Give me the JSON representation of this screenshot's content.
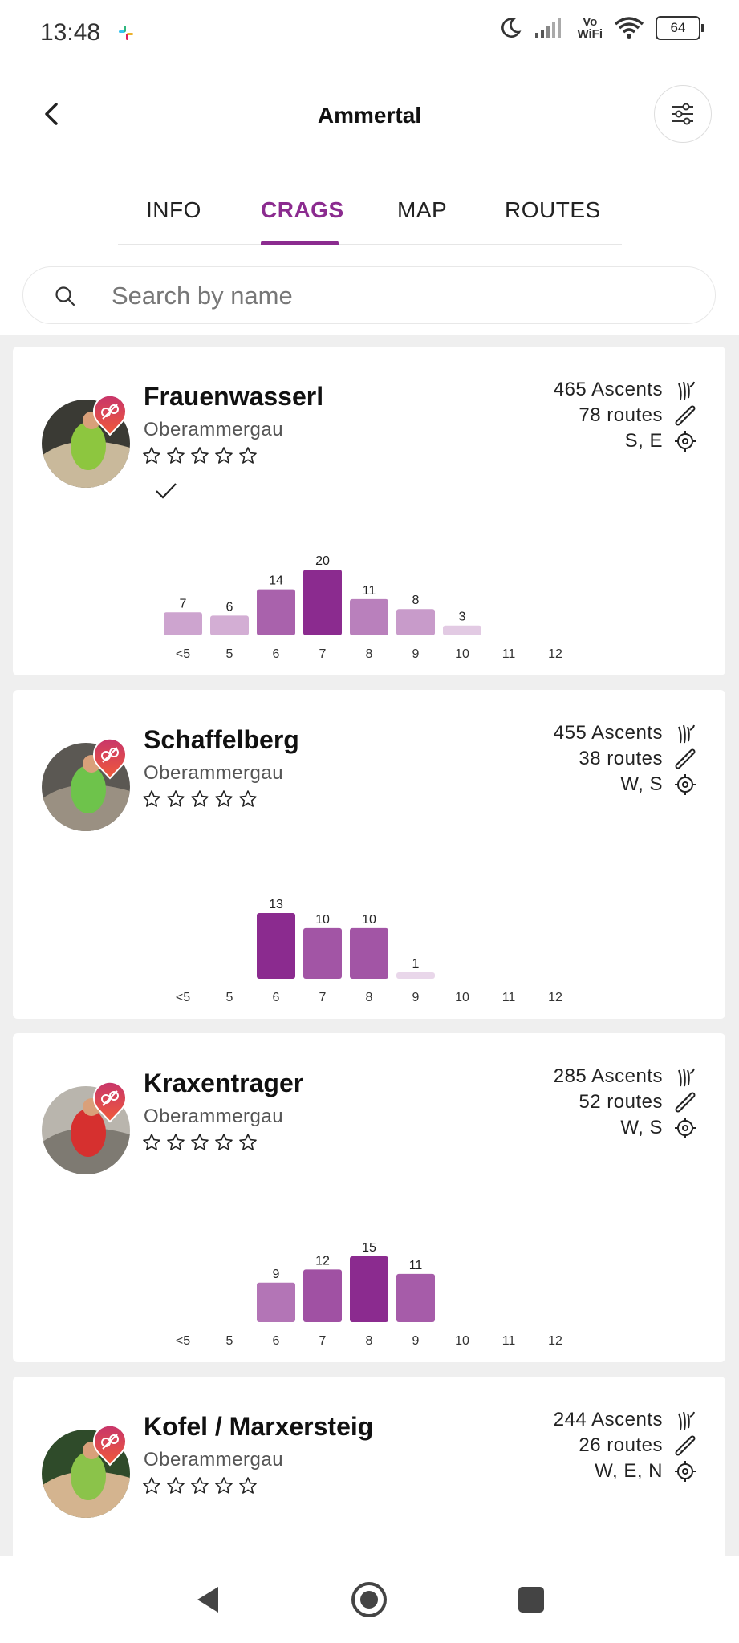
{
  "status": {
    "time": "13:48",
    "battery": "64",
    "vowifi_top": "Vo",
    "vowifi_bottom": "WiFi"
  },
  "header": {
    "title": "Ammertal"
  },
  "tabs": [
    {
      "label": "INFO",
      "active": false
    },
    {
      "label": "CRAGS",
      "active": true
    },
    {
      "label": "MAP",
      "active": false
    },
    {
      "label": "ROUTES",
      "active": false
    }
  ],
  "search": {
    "placeholder": "Search by name",
    "value": ""
  },
  "grade_labels": [
    "<5",
    "5",
    "6",
    "7",
    "8",
    "9",
    "10",
    "11",
    "12"
  ],
  "colors": {
    "accent": "#8b2b8f"
  },
  "crags": [
    {
      "name": "Frauenwasserl",
      "location": "Oberammergau",
      "ascents": "465 Ascents",
      "routes": "78 routes",
      "aspect": "S, E",
      "visited": true,
      "rating": 0,
      "chart_data": {
        "type": "bar",
        "categories": [
          "<5",
          "5",
          "6",
          "7",
          "8",
          "9",
          "10",
          "11",
          "12"
        ],
        "values": [
          7,
          6,
          14,
          20,
          11,
          8,
          3,
          0,
          0
        ]
      }
    },
    {
      "name": "Schaffelberg",
      "location": "Oberammergau",
      "ascents": "455 Ascents",
      "routes": "38 routes",
      "aspect": "W, S",
      "visited": false,
      "rating": 0,
      "chart_data": {
        "type": "bar",
        "categories": [
          "<5",
          "5",
          "6",
          "7",
          "8",
          "9",
          "10",
          "11",
          "12"
        ],
        "values": [
          0,
          0,
          13,
          10,
          10,
          1,
          0,
          0,
          0
        ]
      }
    },
    {
      "name": "Kraxentrager",
      "location": "Oberammergau",
      "ascents": "285 Ascents",
      "routes": "52 routes",
      "aspect": "W, S",
      "visited": false,
      "rating": 0,
      "chart_data": {
        "type": "bar",
        "categories": [
          "<5",
          "5",
          "6",
          "7",
          "8",
          "9",
          "10",
          "11",
          "12"
        ],
        "values": [
          0,
          0,
          9,
          12,
          15,
          11,
          0,
          0,
          0
        ]
      }
    },
    {
      "name": "Kofel / Marxersteig",
      "location": "Oberammergau",
      "ascents": "244 Ascents",
      "routes": "26 routes",
      "aspect": "W, E, N",
      "visited": false,
      "rating": 0
    }
  ]
}
